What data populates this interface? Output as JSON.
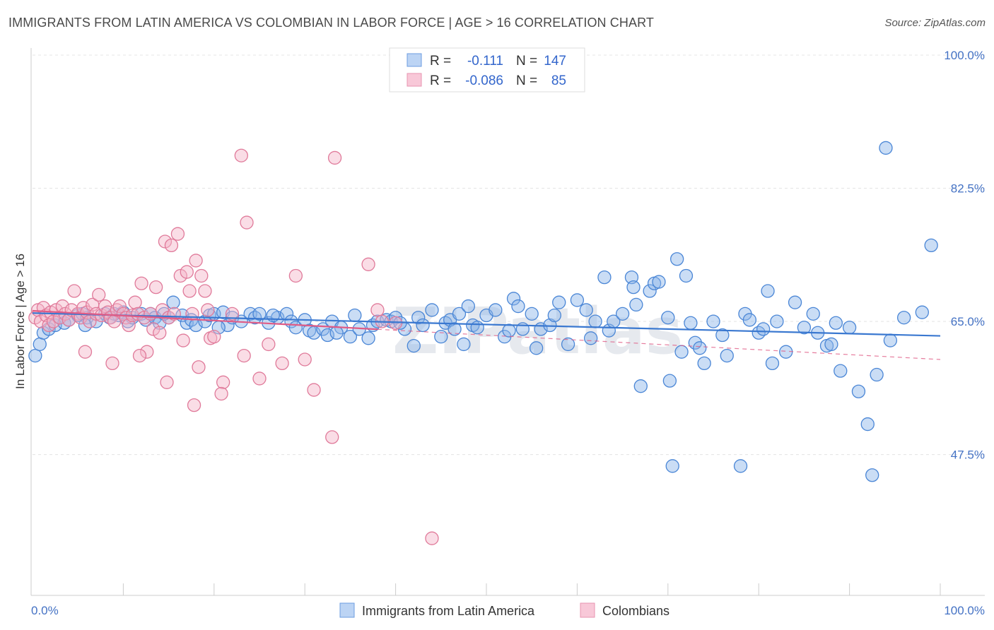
{
  "title": "IMMIGRANTS FROM LATIN AMERICA VS COLOMBIAN IN LABOR FORCE | AGE > 16 CORRELATION CHART",
  "source": "Source: ZipAtlas.com",
  "watermark": "ZIPatlas",
  "chart_data": {
    "type": "scatter",
    "xlabel": "",
    "ylabel": "In Labor Force | Age > 16",
    "xlim": [
      0,
      100
    ],
    "ylim": [
      29,
      100
    ],
    "x_tick_labels": {
      "min": "0.0%",
      "max": "100.0%"
    },
    "y_ticks": [
      47.5,
      65.0,
      82.5,
      100.0
    ],
    "y_tick_labels": [
      "47.5%",
      "65.0%",
      "82.5%",
      "100.0%"
    ],
    "grid": true,
    "legend_position": "top-center",
    "legend": {
      "rows": [
        {
          "r_label": "R =",
          "r_value": "-0.111",
          "n_label": "N =",
          "n_value": "147"
        },
        {
          "r_label": "R =",
          "r_value": "-0.086",
          "n_label": "N =",
          "n_value": "85"
        }
      ]
    },
    "series": [
      {
        "name": "Immigrants from Latin America",
        "color": "#8ab4e8",
        "stroke": "#4a86d6",
        "trend": {
          "x": [
            0,
            100
          ],
          "y": [
            66.1,
            63.1
          ],
          "color": "#3a78d0"
        },
        "points": [
          [
            0.3,
            60.5
          ],
          [
            0.8,
            62.0
          ],
          [
            1.2,
            63.5
          ],
          [
            1.8,
            64.0
          ],
          [
            2.5,
            64.5
          ],
          [
            3.0,
            65.5
          ],
          [
            3.5,
            64.8
          ],
          [
            4.0,
            65.2
          ],
          [
            5.0,
            65.8
          ],
          [
            5.5,
            66.0
          ],
          [
            6.0,
            65.5
          ],
          [
            7.0,
            65.0
          ],
          [
            8.0,
            66.0
          ],
          [
            8.5,
            65.5
          ],
          [
            9.5,
            65.8
          ],
          [
            10.0,
            66.2
          ],
          [
            10.5,
            65.0
          ],
          [
            11.0,
            65.5
          ],
          [
            12.0,
            66.0
          ],
          [
            12.5,
            65.2
          ],
          [
            13.0,
            66.0
          ],
          [
            13.5,
            65.5
          ],
          [
            14.0,
            64.8
          ],
          [
            15.0,
            65.5
          ],
          [
            15.5,
            67.5
          ],
          [
            16.5,
            65.8
          ],
          [
            17.0,
            64.8
          ],
          [
            17.5,
            65.2
          ],
          [
            18.0,
            64.5
          ],
          [
            19.0,
            65.0
          ],
          [
            19.5,
            65.8
          ],
          [
            20.0,
            66.0
          ],
          [
            21.0,
            66.2
          ],
          [
            21.5,
            64.5
          ],
          [
            22.0,
            65.5
          ],
          [
            23.0,
            65.0
          ],
          [
            24.0,
            66.0
          ],
          [
            24.5,
            65.5
          ],
          [
            25.0,
            66.0
          ],
          [
            26.0,
            64.8
          ],
          [
            27.0,
            65.5
          ],
          [
            28.0,
            66.0
          ],
          [
            28.5,
            65.0
          ],
          [
            29.0,
            64.2
          ],
          [
            30.0,
            65.2
          ],
          [
            30.5,
            63.8
          ],
          [
            31.0,
            63.5
          ],
          [
            32.0,
            64.0
          ],
          [
            32.5,
            63.2
          ],
          [
            33.0,
            65.0
          ],
          [
            34.0,
            64.2
          ],
          [
            35.0,
            63.0
          ],
          [
            35.5,
            65.8
          ],
          [
            36.0,
            64.0
          ],
          [
            37.0,
            62.8
          ],
          [
            37.5,
            64.5
          ],
          [
            38.0,
            65.0
          ],
          [
            39.0,
            65.2
          ],
          [
            39.5,
            65.0
          ],
          [
            40.0,
            65.5
          ],
          [
            41.0,
            64.0
          ],
          [
            42.0,
            61.8
          ],
          [
            42.5,
            65.5
          ],
          [
            43.0,
            64.5
          ],
          [
            44.0,
            66.5
          ],
          [
            45.0,
            63.0
          ],
          [
            45.5,
            64.8
          ],
          [
            46.0,
            65.2
          ],
          [
            47.0,
            66.0
          ],
          [
            47.5,
            62.0
          ],
          [
            48.0,
            67.0
          ],
          [
            48.5,
            64.5
          ],
          [
            49.0,
            64.2
          ],
          [
            50.0,
            65.8
          ],
          [
            51.0,
            66.5
          ],
          [
            52.0,
            63.0
          ],
          [
            53.0,
            68.0
          ],
          [
            53.5,
            67.0
          ],
          [
            54.0,
            64.0
          ],
          [
            55.0,
            66.0
          ],
          [
            55.5,
            61.5
          ],
          [
            56.0,
            64.0
          ],
          [
            57.0,
            64.5
          ],
          [
            58.0,
            67.5
          ],
          [
            59.0,
            62.0
          ],
          [
            60.0,
            67.8
          ],
          [
            61.0,
            66.5
          ],
          [
            62.0,
            65.0
          ],
          [
            63.0,
            70.8
          ],
          [
            63.5,
            63.8
          ],
          [
            64.0,
            65.0
          ],
          [
            65.0,
            66.0
          ],
          [
            66.0,
            70.8
          ],
          [
            66.5,
            67.2
          ],
          [
            67.0,
            56.5
          ],
          [
            68.0,
            69.0
          ],
          [
            68.5,
            70.0
          ],
          [
            69.0,
            70.2
          ],
          [
            70.0,
            65.5
          ],
          [
            70.5,
            46.0
          ],
          [
            71.0,
            73.2
          ],
          [
            71.5,
            61.0
          ],
          [
            72.0,
            71.0
          ],
          [
            72.5,
            64.8
          ],
          [
            73.0,
            62.2
          ],
          [
            73.5,
            61.5
          ],
          [
            74.0,
            59.5
          ],
          [
            75.0,
            65.0
          ],
          [
            76.0,
            63.2
          ],
          [
            78.0,
            46.0
          ],
          [
            78.5,
            66.0
          ],
          [
            79.0,
            65.2
          ],
          [
            80.0,
            63.5
          ],
          [
            81.0,
            69.0
          ],
          [
            81.5,
            59.5
          ],
          [
            82.0,
            65.0
          ],
          [
            83.0,
            61.0
          ],
          [
            84.0,
            67.5
          ],
          [
            85.0,
            64.2
          ],
          [
            86.5,
            63.5
          ],
          [
            87.5,
            61.8
          ],
          [
            88.0,
            62.0
          ],
          [
            88.5,
            64.8
          ],
          [
            89.0,
            58.5
          ],
          [
            91.0,
            55.8
          ],
          [
            92.0,
            51.5
          ],
          [
            92.5,
            44.8
          ],
          [
            93.0,
            58.0
          ],
          [
            94.0,
            87.8
          ],
          [
            96.0,
            65.5
          ],
          [
            98.0,
            66.2
          ],
          [
            99.0,
            75.0
          ],
          [
            5.8,
            64.5
          ],
          [
            9.0,
            66.0
          ],
          [
            14.5,
            66.0
          ],
          [
            20.5,
            64.2
          ],
          [
            26.5,
            65.8
          ],
          [
            33.5,
            63.5
          ],
          [
            40.5,
            64.8
          ],
          [
            46.5,
            64.0
          ],
          [
            52.5,
            63.8
          ],
          [
            57.5,
            65.8
          ],
          [
            61.5,
            62.8
          ],
          [
            66.2,
            69.5
          ],
          [
            70.2,
            57.2
          ],
          [
            76.5,
            60.5
          ],
          [
            80.5,
            64.0
          ],
          [
            86.0,
            66.0
          ],
          [
            90.0,
            64.2
          ],
          [
            94.5,
            62.5
          ]
        ]
      },
      {
        "name": "Colombians",
        "color": "#f4b3c8",
        "stroke": "#e07a9a",
        "trend": {
          "x": [
            0,
            100
          ],
          "y": [
            66.4,
            60.0
          ],
          "color": "#e05c86",
          "dashed_from": 38
        },
        "points": [
          [
            0.3,
            65.5
          ],
          [
            0.6,
            66.5
          ],
          [
            0.9,
            65.0
          ],
          [
            1.2,
            66.8
          ],
          [
            1.5,
            65.8
          ],
          [
            1.8,
            64.5
          ],
          [
            2.0,
            66.2
          ],
          [
            2.3,
            65.0
          ],
          [
            2.6,
            66.5
          ],
          [
            3.0,
            65.5
          ],
          [
            3.3,
            67.0
          ],
          [
            3.6,
            66.0
          ],
          [
            4.0,
            65.2
          ],
          [
            4.3,
            66.5
          ],
          [
            4.6,
            69.0
          ],
          [
            5.0,
            66.0
          ],
          [
            5.3,
            65.5
          ],
          [
            5.6,
            66.8
          ],
          [
            6.0,
            66.2
          ],
          [
            6.3,
            65.0
          ],
          [
            6.6,
            67.2
          ],
          [
            7.0,
            66.0
          ],
          [
            7.3,
            68.5
          ],
          [
            7.6,
            65.8
          ],
          [
            8.0,
            67.0
          ],
          [
            8.3,
            66.2
          ],
          [
            8.6,
            65.5
          ],
          [
            9.0,
            65.0
          ],
          [
            9.3,
            66.5
          ],
          [
            9.6,
            67.0
          ],
          [
            10.0,
            66.0
          ],
          [
            10.3,
            65.5
          ],
          [
            10.6,
            64.5
          ],
          [
            11.0,
            65.8
          ],
          [
            11.3,
            67.5
          ],
          [
            11.6,
            66.0
          ],
          [
            12.0,
            70.0
          ],
          [
            12.3,
            65.5
          ],
          [
            12.6,
            61.0
          ],
          [
            13.0,
            66.0
          ],
          [
            13.3,
            64.0
          ],
          [
            13.6,
            69.5
          ],
          [
            14.0,
            63.5
          ],
          [
            14.3,
            66.5
          ],
          [
            14.6,
            75.5
          ],
          [
            15.0,
            65.5
          ],
          [
            15.3,
            75.0
          ],
          [
            15.6,
            66.0
          ],
          [
            16.0,
            76.5
          ],
          [
            16.3,
            71.0
          ],
          [
            16.6,
            62.5
          ],
          [
            17.0,
            71.5
          ],
          [
            17.3,
            69.0
          ],
          [
            17.6,
            66.0
          ],
          [
            18.0,
            73.0
          ],
          [
            18.3,
            59.0
          ],
          [
            18.6,
            71.0
          ],
          [
            19.0,
            69.0
          ],
          [
            19.3,
            66.5
          ],
          [
            19.6,
            62.8
          ],
          [
            20.0,
            63.0
          ],
          [
            21.0,
            57.0
          ],
          [
            22.0,
            66.0
          ],
          [
            23.0,
            86.8
          ],
          [
            23.6,
            78.0
          ],
          [
            25.0,
            57.5
          ],
          [
            27.5,
            59.5
          ],
          [
            29.0,
            71.0
          ],
          [
            30.0,
            60.0
          ],
          [
            31.0,
            56.0
          ],
          [
            33.0,
            49.8
          ],
          [
            37.0,
            72.5
          ],
          [
            38.0,
            66.5
          ],
          [
            40.0,
            64.8
          ],
          [
            44.0,
            36.5
          ],
          [
            5.8,
            61.0
          ],
          [
            8.8,
            59.5
          ],
          [
            11.8,
            60.5
          ],
          [
            14.8,
            57.0
          ],
          [
            17.8,
            54.0
          ],
          [
            20.8,
            55.5
          ],
          [
            23.3,
            60.5
          ],
          [
            26.0,
            62.0
          ],
          [
            33.3,
            86.5
          ],
          [
            38.5,
            65.0
          ]
        ]
      }
    ]
  },
  "bottom_legend": [
    "Immigrants from Latin America",
    "Colombians"
  ]
}
